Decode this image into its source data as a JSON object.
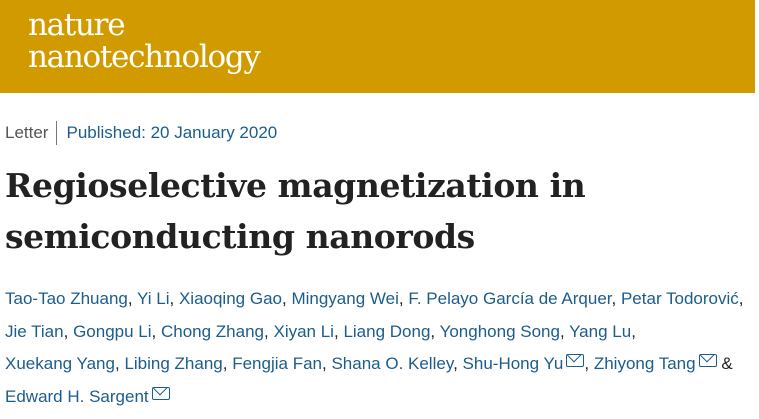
{
  "journal": {
    "logo_line1": "nature",
    "logo_line2": "nanotechnology",
    "brand_color": "#d19b00"
  },
  "article": {
    "type": "Letter",
    "published": "Published: 20 January 2020",
    "title": "Regioselective magnetization in semiconducting nanorods"
  },
  "authors": [
    {
      "name": "Tao-Tao Zhuang",
      "corresponding": false
    },
    {
      "name": "Yi Li",
      "corresponding": false
    },
    {
      "name": "Xiaoqing Gao",
      "corresponding": false
    },
    {
      "name": "Mingyang Wei",
      "corresponding": false
    },
    {
      "name": "F. Pelayo García de Arquer",
      "corresponding": false
    },
    {
      "name": "Petar Todorović",
      "corresponding": false
    },
    {
      "name": "Jie Tian",
      "corresponding": false
    },
    {
      "name": "Gongpu Li",
      "corresponding": false
    },
    {
      "name": "Chong Zhang",
      "corresponding": false
    },
    {
      "name": "Xiyan Li",
      "corresponding": false
    },
    {
      "name": "Liang Dong",
      "corresponding": false
    },
    {
      "name": "Yonghong Song",
      "corresponding": false
    },
    {
      "name": "Yang Lu",
      "corresponding": false
    },
    {
      "name": "Xuekang Yang",
      "corresponding": false
    },
    {
      "name": "Libing Zhang",
      "corresponding": false
    },
    {
      "name": "Fengjia Fan",
      "corresponding": false
    },
    {
      "name": "Shana O. Kelley",
      "corresponding": false
    },
    {
      "name": "Shu-Hong Yu",
      "corresponding": true
    },
    {
      "name": "Zhiyong Tang",
      "corresponding": true
    },
    {
      "name": "Edward H. Sargent",
      "corresponding": true
    }
  ],
  "separators": {
    "comma": ",",
    "and": "&"
  },
  "icons": {
    "corresponding": "mail-icon"
  }
}
